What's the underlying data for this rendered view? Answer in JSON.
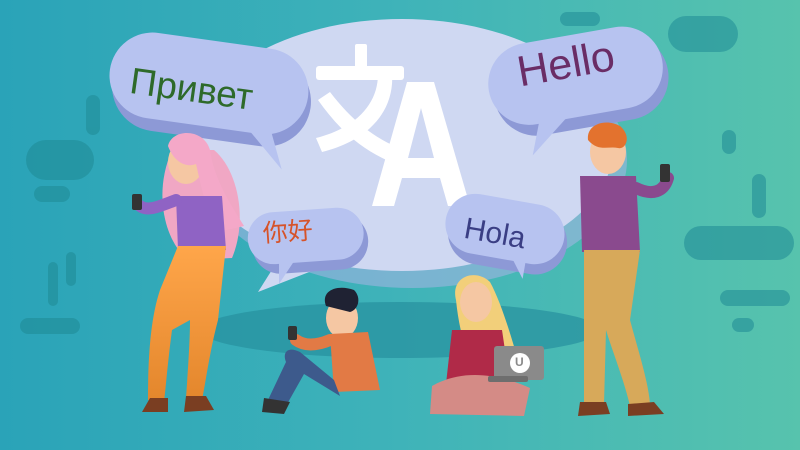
{
  "scene": {
    "background_gradient": [
      "#2aa3b8",
      "#57c3ad"
    ],
    "center_bubble_color": "#cfd8f2",
    "center_icon": "translate-icon",
    "speech_bubbles": {
      "russian": "Привет",
      "english": "Hello",
      "spanish": "Hola",
      "chinese": "你好"
    },
    "bubble_colors": {
      "russian": "#b7c3f0",
      "english": "#b7c3f0",
      "spanish": "#b7c3f0",
      "chinese": "#b7c3f0"
    },
    "text_colors": {
      "russian": "#2e6a2a",
      "english": "#6a2d66",
      "spanish": "#3a3e84",
      "chinese": "#d6532a"
    },
    "laptop_logo": "U",
    "people": [
      "woman-standing-phone",
      "man-sitting-phone",
      "woman-sitting-laptop",
      "man-standing-phone"
    ]
  }
}
